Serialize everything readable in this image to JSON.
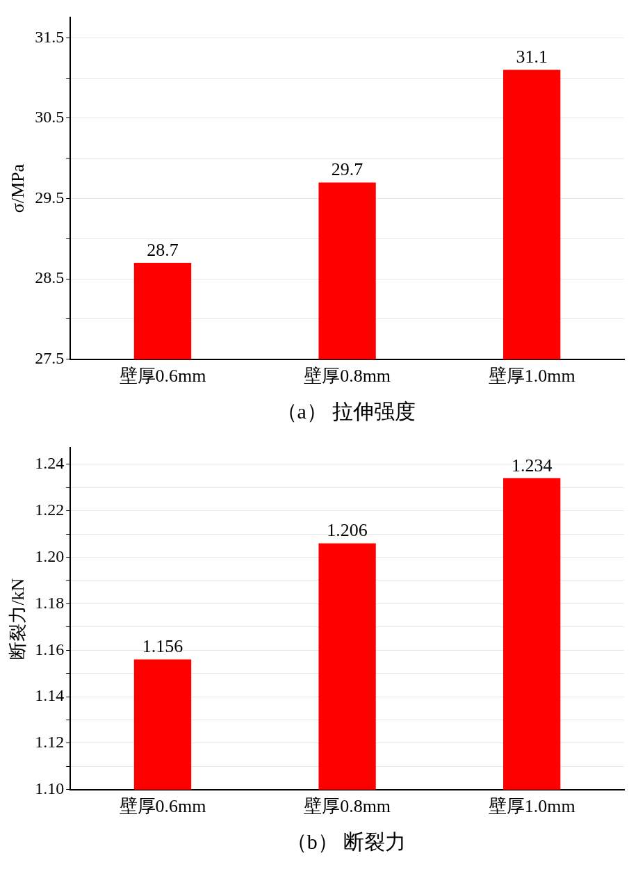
{
  "chart_data": [
    {
      "type": "bar",
      "categories": [
        "壁厚0.6mm",
        "壁厚0.8mm",
        "壁厚1.0mm"
      ],
      "values": [
        28.7,
        29.7,
        31.1
      ],
      "color": "#ff0000",
      "ylabel": "σ/MPa",
      "ylim": [
        27.5,
        31.75
      ],
      "yticks": [
        27.5,
        {
          "value": 28,
          "label": null
        },
        28.5,
        {
          "value": 29,
          "label": null
        },
        29.5,
        {
          "value": 30,
          "label": null
        },
        30.5,
        {
          "value": 31,
          "label": null
        },
        31.5
      ],
      "grid": "y",
      "data_labels": true,
      "annotations": [
        "（a）  拉伸强度"
      ]
    },
    {
      "type": "bar",
      "categories": [
        "壁厚0.6mm",
        "壁厚0.8mm",
        "壁厚1.0mm"
      ],
      "values": [
        1.156,
        1.206,
        1.234
      ],
      "color": "#ff0000",
      "ylabel": "断裂力/kN",
      "ylim": [
        1.1,
        1.247
      ],
      "yticks": [
        {
          "value": 1.1,
          "label": "1.10"
        },
        {
          "value": 1.11,
          "label": null
        },
        {
          "value": 1.12,
          "label": "1.12"
        },
        {
          "value": 1.13,
          "label": null
        },
        {
          "value": 1.14,
          "label": "1.14"
        },
        {
          "value": 1.15,
          "label": null
        },
        {
          "value": 1.16,
          "label": "1.16"
        },
        {
          "value": 1.17,
          "label": null
        },
        {
          "value": 1.18,
          "label": "1.18"
        },
        {
          "value": 1.19,
          "label": null
        },
        {
          "value": 1.2,
          "label": "1.20"
        },
        {
          "value": 1.21,
          "label": null
        },
        {
          "value": 1.22,
          "label": "1.22"
        },
        {
          "value": 1.23,
          "label": null
        },
        {
          "value": 1.24,
          "label": "1.24"
        }
      ],
      "grid": "y",
      "data_labels": true,
      "annotations": [
        "（b）  断裂力"
      ]
    }
  ]
}
